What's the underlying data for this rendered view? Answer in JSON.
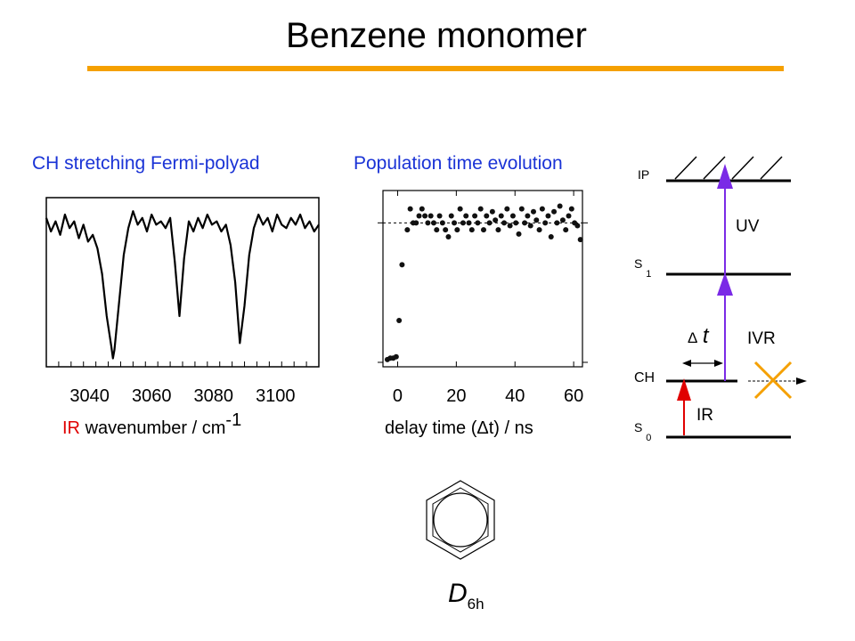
{
  "title": "Benzene monomer",
  "colors": {
    "accent_rule": "#f5a000",
    "panel_title": "#1a33d6",
    "ir_arrow": "#e00000",
    "uv_arrow": "#7a2ae6",
    "ivr_cross": "#f5a000"
  },
  "chart_data": [
    {
      "type": "line",
      "title": "CH stretching Fermi-polyad",
      "xlabel_prefix": "IR",
      "xlabel_main": "wavenumber / cm",
      "xlabel_exp": "-1",
      "xlim": [
        3026,
        3114
      ],
      "xticks": [
        3040,
        3060,
        3080,
        3100
      ],
      "xtick_labels": [
        "3040",
        "3060",
        "3080",
        "3100"
      ],
      "grid": false,
      "dips": [
        {
          "center": 3047.5,
          "width": 1.6,
          "depth": 0.85
        },
        {
          "center": 3069.0,
          "width": 1.0,
          "depth": 0.6
        },
        {
          "center": 3088.5,
          "width": 1.4,
          "depth": 0.83
        }
      ],
      "baseline": 0.2,
      "x": [
        3026,
        3027.5,
        3029,
        3030.5,
        3032,
        3033.5,
        3035,
        3036.5,
        3038,
        3039.5,
        3041,
        3042.5,
        3044,
        3045.5,
        3047,
        3047.5,
        3048,
        3049.5,
        3051,
        3052.5,
        3054,
        3055.5,
        3057,
        3058.5,
        3060,
        3061.5,
        3063,
        3064.5,
        3066,
        3067.5,
        3069,
        3070.5,
        3072,
        3073.5,
        3075,
        3076.5,
        3078,
        3079.5,
        3081,
        3082.5,
        3084,
        3085.5,
        3087,
        3088.5,
        3090,
        3091.5,
        3093,
        3094.5,
        3096,
        3097.5,
        3099,
        3100.5,
        3102,
        3103.5,
        3105,
        3106.5,
        3108,
        3109.5,
        3111,
        3112.5,
        3114
      ],
      "y": [
        0.88,
        0.8,
        0.86,
        0.78,
        0.9,
        0.82,
        0.86,
        0.76,
        0.84,
        0.74,
        0.78,
        0.7,
        0.55,
        0.3,
        0.12,
        0.05,
        0.1,
        0.38,
        0.66,
        0.82,
        0.92,
        0.84,
        0.88,
        0.8,
        0.9,
        0.84,
        0.86,
        0.82,
        0.88,
        0.62,
        0.3,
        0.64,
        0.86,
        0.8,
        0.88,
        0.82,
        0.9,
        0.84,
        0.86,
        0.8,
        0.84,
        0.72,
        0.5,
        0.14,
        0.36,
        0.66,
        0.82,
        0.9,
        0.84,
        0.88,
        0.8,
        0.9,
        0.84,
        0.82,
        0.88,
        0.84,
        0.9,
        0.82,
        0.86,
        0.8,
        0.84
      ]
    },
    {
      "type": "scatter",
      "title": "Population time evolution",
      "xlabel": "delay time (Δt) / ns",
      "xlim": [
        -5,
        63
      ],
      "ylim": [
        0,
        1.2
      ],
      "xticks": [
        0,
        20,
        40,
        60
      ],
      "xtick_labels": [
        "0",
        "20",
        "40",
        "60"
      ],
      "reference_level": 1.0,
      "x": [
        -3.5,
        -2.5,
        -1.5,
        -0.5,
        0.5,
        1.5,
        3.3,
        4.3,
        5.3,
        6.3,
        7.3,
        8.3,
        9.3,
        10.3,
        11.3,
        12.3,
        13.3,
        14.3,
        15.3,
        16.3,
        17.3,
        18.3,
        19.3,
        20.3,
        21.3,
        22.3,
        23.3,
        24.3,
        25.3,
        26.3,
        27.3,
        28.3,
        29.3,
        30.3,
        31.3,
        32.3,
        33.3,
        34.3,
        35.3,
        36.3,
        37.3,
        38.3,
        39.3,
        40.3,
        41.3,
        42.3,
        43.3,
        44.3,
        45.3,
        46.3,
        47.3,
        48.3,
        49.3,
        50.3,
        51.3,
        52.3,
        53.3,
        54.3,
        55.3,
        56.3,
        57.3,
        58.3,
        59.3,
        60.3,
        61.3,
        62.3
      ],
      "y": [
        0.02,
        0.03,
        0.03,
        0.04,
        0.3,
        0.7,
        0.95,
        1.1,
        1.0,
        1.0,
        1.05,
        1.1,
        1.05,
        1.0,
        1.05,
        1.0,
        0.95,
        1.05,
        1.0,
        0.95,
        0.9,
        1.05,
        1.0,
        0.95,
        1.1,
        1.0,
        1.05,
        1.0,
        0.95,
        1.05,
        1.0,
        1.1,
        0.95,
        1.05,
        1.0,
        1.08,
        1.02,
        0.95,
        1.05,
        1.0,
        1.1,
        0.98,
        1.05,
        1.0,
        0.92,
        1.1,
        1.0,
        1.05,
        0.98,
        1.08,
        1.02,
        0.95,
        1.1,
        1.0,
        1.05,
        0.9,
        1.08,
        1.0,
        1.12,
        1.02,
        0.95,
        1.05,
        1.1,
        1.0,
        0.98,
        0.88
      ]
    }
  ],
  "energy_diagram": {
    "levels": [
      {
        "label": "IP",
        "sub": ""
      },
      {
        "label": "S",
        "sub": "1"
      },
      {
        "label": "CH",
        "sub": ""
      },
      {
        "label": "S",
        "sub": "0"
      }
    ],
    "uv_label": "UV",
    "ir_label": "IR",
    "ivr_label": "IVR",
    "dt_symbol": "Δ",
    "dt_var": "t"
  },
  "molecule": {
    "symmetry_main": "D",
    "symmetry_sub": "6h"
  }
}
